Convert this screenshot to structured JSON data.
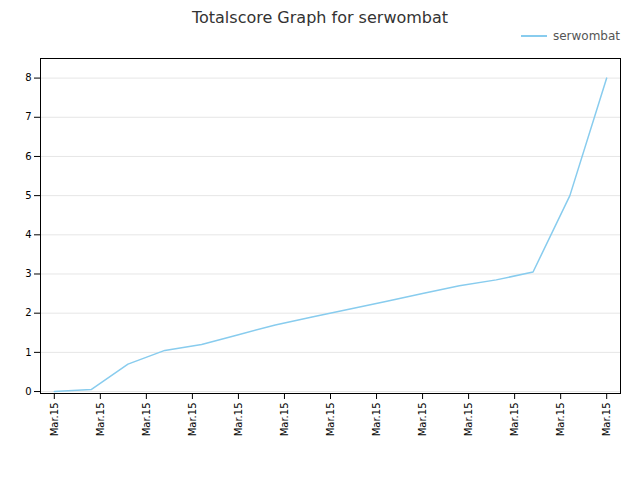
{
  "chart_data": {
    "type": "line",
    "title": "Totalscore Graph for serwombat",
    "x": [
      0,
      0.8,
      1.6,
      2.4,
      3.2,
      4,
      4.8,
      5.6,
      6.4,
      7.2,
      8,
      8.8,
      9.6,
      10.4,
      11.2,
      12
    ],
    "series": [
      {
        "name": "serwombat",
        "color": "#88ccee",
        "values": [
          0.0,
          0.05,
          0.7,
          1.05,
          1.2,
          1.45,
          1.7,
          1.9,
          2.1,
          2.3,
          2.5,
          2.7,
          2.85,
          3.05,
          5.0,
          8.0
        ]
      }
    ],
    "xlim": [
      -0.3,
      12.3
    ],
    "xticks": [
      {
        "value": 0,
        "label": "Mar.15"
      },
      {
        "value": 1,
        "label": "Mar.15"
      },
      {
        "value": 2,
        "label": "Mar.15"
      },
      {
        "value": 3,
        "label": "Mar.15"
      },
      {
        "value": 4,
        "label": "Mar.15"
      },
      {
        "value": 5,
        "label": "Mar.15"
      },
      {
        "value": 6,
        "label": "Mar.15"
      },
      {
        "value": 7,
        "label": "Mar.15"
      },
      {
        "value": 8,
        "label": "Mar.15"
      },
      {
        "value": 9,
        "label": "Mar.15"
      },
      {
        "value": 10,
        "label": "Mar.15"
      },
      {
        "value": 11,
        "label": "Mar.15"
      },
      {
        "value": 12,
        "label": "Mar.15"
      }
    ],
    "ylim": [
      -0.05,
      8.5
    ],
    "yticks": [
      0,
      1,
      2,
      3,
      4,
      5,
      6,
      7,
      8
    ],
    "grid": true,
    "legend": "upper right"
  }
}
